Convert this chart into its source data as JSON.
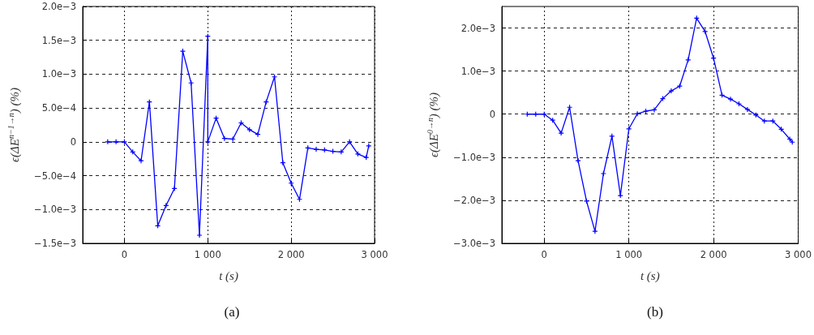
{
  "chart_data": [
    {
      "type": "line",
      "title": "(a)",
      "xlabel": "t (s)",
      "ylabel": "ϵ(ΔE$^{n−1→n}$) (%)",
      "color": "#0000ff",
      "marker": "cross",
      "grid": true,
      "x": [
        -200,
        -100,
        0,
        100,
        200,
        300,
        400,
        500,
        600,
        700,
        800,
        900,
        1000,
        1000,
        1100,
        1200,
        1300,
        1400,
        1500,
        1600,
        1700,
        1800,
        1900,
        2000,
        2100,
        2200,
        2300,
        2400,
        2500,
        2600,
        2700,
        2800,
        2900,
        2930
      ],
      "values": [
        0,
        0,
        0,
        -0.00015,
        -0.00028,
        0.00059,
        -0.00124,
        -0.00094,
        -0.00069,
        0.00134,
        0.00087,
        -0.00138,
        0.00156,
        0,
        0.00035,
        5e-05,
        4e-05,
        0.00028,
        0.00018,
        0.00011,
        0.00059,
        0.00096,
        -0.00031,
        -0.00061,
        -0.00085,
        -9e-05,
        -0.00011,
        -0.00012,
        -0.00014,
        -0.00015,
        0,
        -0.00018,
        -0.00023,
        -6e-05
      ],
      "xlim": [
        -500,
        3000
      ],
      "xticks": [
        0,
        {
          "value": 1000,
          "label": "1 000"
        },
        {
          "value": 2000,
          "label": "2 000"
        },
        {
          "value": 3000,
          "label": "3 000"
        }
      ],
      "ylim": [
        -0.0015,
        0.002
      ],
      "yticks": [
        {
          "value": -0.0015,
          "label": "−1.5e−3"
        },
        {
          "value": -0.001,
          "label": "−1.0e−3"
        },
        {
          "value": -0.0005,
          "label": "−5.0e−4"
        },
        0,
        {
          "value": 0.0005,
          "label": "5.0e−4"
        },
        {
          "value": 0.001,
          "label": "1.0e−3"
        },
        {
          "value": 0.0015,
          "label": "1.5e−3"
        },
        {
          "value": 0.002,
          "label": "2.0e−3"
        }
      ]
    },
    {
      "type": "line",
      "title": "(b)",
      "xlabel": "t (s)",
      "ylabel": "ϵ(ΔE$^{0→n}$) (%)",
      "color": "#0000ff",
      "marker": "cross",
      "grid": true,
      "x": [
        -200,
        -100,
        0,
        100,
        200,
        300,
        400,
        500,
        600,
        700,
        800,
        900,
        1000,
        1100,
        1200,
        1300,
        1400,
        1500,
        1600,
        1700,
        1800,
        1900,
        2000,
        2100,
        2200,
        2300,
        2400,
        2500,
        2600,
        2700,
        2800,
        2900,
        2930
      ],
      "values": [
        0,
        0,
        0,
        -0.00014,
        -0.00044,
        0.00016,
        -0.00108,
        -0.00202,
        -0.00272,
        -0.00138,
        -0.00051,
        -0.00189,
        -0.00034,
        1e-05,
        7e-05,
        0.0001,
        0.00036,
        0.00054,
        0.00065,
        0.00126,
        0.00223,
        0.00192,
        0.0013,
        0.00044,
        0.00035,
        0.00024,
        0.00011,
        -2e-05,
        -0.00016,
        -0.00016,
        -0.00035,
        -0.00058,
        -0.00065
      ],
      "xlim": [
        -500,
        3000
      ],
      "xticks": [
        0,
        {
          "value": 1000,
          "label": "1 000"
        },
        {
          "value": 2000,
          "label": "2 000"
        },
        {
          "value": 3000,
          "label": "3 000"
        }
      ],
      "ylim": [
        -0.003,
        0.0025
      ],
      "yticks": [
        {
          "value": -0.003,
          "label": "−3.0e−3"
        },
        {
          "value": -0.002,
          "label": "−2.0e−3"
        },
        {
          "value": -0.001,
          "label": "−1.0e−3"
        },
        0,
        {
          "value": 0.001,
          "label": "1.0e−3"
        },
        {
          "value": 0.002,
          "label": "2.0e−3"
        }
      ]
    }
  ]
}
